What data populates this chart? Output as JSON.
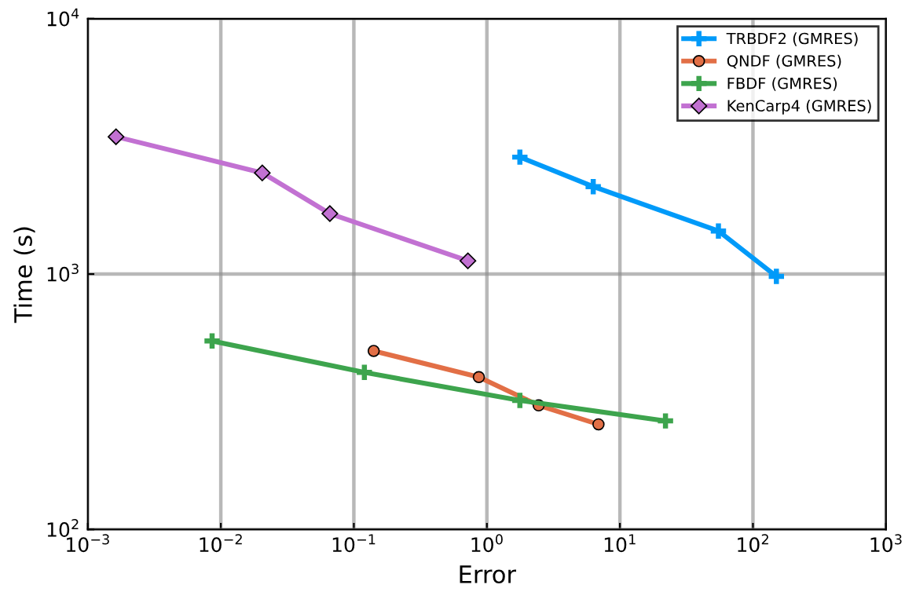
{
  "chart_data": {
    "type": "line",
    "xlabel": "Error",
    "ylabel": "Time (s)",
    "log": "xy",
    "grid": true,
    "legend": "top right",
    "line_style": "solid",
    "xlim": [
      0.001,
      1000
    ],
    "ylim": [
      100,
      10000
    ],
    "xticks": [
      {
        "value": 0.001,
        "label": "10$^{−3}$"
      },
      {
        "value": 0.01,
        "label": "10$^{−2}$"
      },
      {
        "value": 0.1,
        "label": "10$^{−1}$"
      },
      {
        "value": 1,
        "label": "10$^{0}$"
      },
      {
        "value": 10,
        "label": "10$^{1}$"
      },
      {
        "value": 100,
        "label": "10$^{2}$"
      },
      {
        "value": 1000,
        "label": "10$^{3}$"
      }
    ],
    "yticks": [
      {
        "value": 100,
        "label": "10$^{2}$"
      },
      {
        "value": 1000,
        "label": "10$^{3}$"
      },
      {
        "value": 10000,
        "label": "10$^{4}$"
      }
    ],
    "series": [
      {
        "name": "TRBDF2 (GMRES)",
        "color": "#009af9",
        "marker": "cross",
        "x": [
          1.77,
          6.3,
          55,
          150
        ],
        "values": [
          2870,
          2200,
          1475,
          980
        ]
      },
      {
        "name": "QNDF (GMRES)",
        "color": "#e26f46",
        "marker": "circle",
        "x": [
          0.141,
          0.87,
          2.45,
          6.9
        ],
        "values": [
          500,
          395,
          306,
          258
        ]
      },
      {
        "name": "FBDF (GMRES)",
        "color": "#3da44d",
        "marker": "cross",
        "x": [
          0.0086,
          0.12,
          1.77,
          22
        ],
        "values": [
          547,
          412,
          320,
          266
        ]
      },
      {
        "name": "KenCarp4 (GMRES)",
        "color": "#c271d2",
        "marker": "diamond",
        "x": [
          0.00163,
          0.0205,
          0.066,
          0.72
        ],
        "values": [
          3450,
          2490,
          1725,
          1127
        ]
      }
    ]
  }
}
